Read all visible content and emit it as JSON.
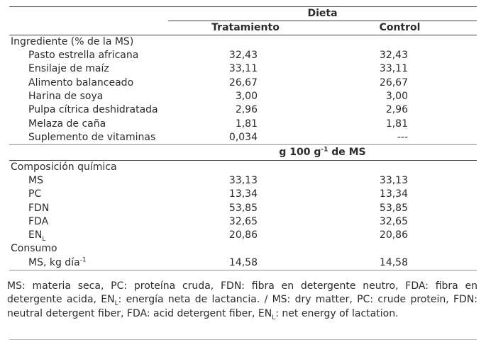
{
  "table": {
    "group_header": "Dieta",
    "columns": {
      "treatment": "Tratamiento",
      "control": "Control"
    },
    "unit_header": {
      "text": "g 100 g",
      "sup": "-1",
      "suffix": " de MS"
    },
    "sections": [
      {
        "title": "Ingrediente (% de la MS)",
        "rows": [
          {
            "label": "Pasto estrella africana",
            "treatment": "32,43",
            "control": "32,43"
          },
          {
            "label": "Ensilaje de maíz",
            "treatment": "33,11",
            "control": "33,11"
          },
          {
            "label": "Alimento balanceado",
            "treatment": "26,67",
            "control": "26,67"
          },
          {
            "label": "Harina de soya",
            "treatment": "3,00",
            "control": "3,00"
          },
          {
            "label": "Pulpa cítrica deshidratada",
            "treatment": "2,96",
            "control": "2,96"
          },
          {
            "label": "Melaza de caña",
            "treatment": "1,81",
            "control": "1,81"
          },
          {
            "label": "Suplemento de vitaminas",
            "treatment": "0,034",
            "control": "---"
          }
        ]
      },
      {
        "title": "Composición química",
        "rows": [
          {
            "label": "MS",
            "treatment": "33,13",
            "control": "33,13"
          },
          {
            "label": "PC",
            "treatment": "13,34",
            "control": "13,34"
          },
          {
            "label": "FDN",
            "treatment": "53,85",
            "control": "53,85"
          },
          {
            "label": "FDA",
            "treatment": "32,65",
            "control": "32,65"
          },
          {
            "label": "EN",
            "label_sub": "L",
            "treatment": "20,86",
            "control": "20,86"
          }
        ]
      },
      {
        "title": "Consumo",
        "rows": [
          {
            "label": "MS, kg día",
            "label_sup": "-1",
            "treatment": "14,58",
            "control": "14,58"
          }
        ]
      }
    ]
  },
  "footnote": {
    "parts": [
      {
        "text": "MS: materia seca, PC: proteína cruda, FDN: fibra en detergente neutro, FDA: fibra en detergente acida, EN"
      },
      {
        "sub": "L"
      },
      {
        "text": ": energía neta de lactancia. / MS: dry matter, PC: crude protein, FDN: neutral detergent fiber, FDA: acid detergent fiber, EN"
      },
      {
        "sub": "L"
      },
      {
        "text": ": net energy of lactation."
      }
    ]
  },
  "colors": {
    "rule_dark": "#404040",
    "rule_medium": "#8f8f8f",
    "rule_light": "#bfbfbf",
    "text": "#2b2b2b",
    "background": "#ffffff"
  }
}
